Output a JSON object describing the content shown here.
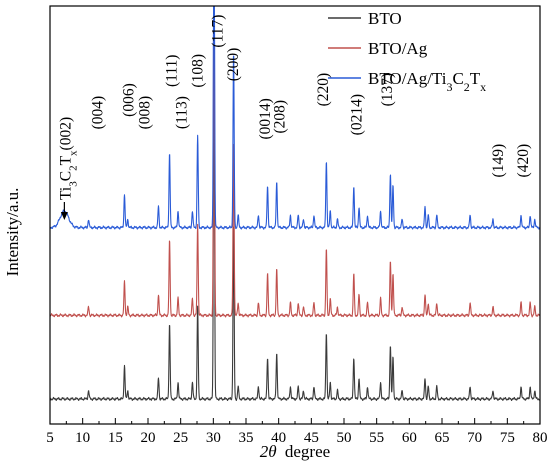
{
  "chart_data": {
    "type": "line",
    "title": "",
    "xlabel_symbol": "2θ",
    "xlabel_unit": "degree",
    "ylabel": "Intensity/a.u.",
    "xlim": [
      5,
      80
    ],
    "x_ticks": [
      5,
      10,
      15,
      20,
      25,
      30,
      35,
      40,
      45,
      50,
      55,
      60,
      65,
      70,
      75,
      80
    ],
    "y_ticks_shown": false,
    "grid": false,
    "legend_position": "top-right",
    "series": [
      {
        "name": "BTO",
        "color": "#3a3a3a",
        "baseline": 0.94,
        "offset": 0.0
      },
      {
        "name": "BTO/Ag",
        "color": "#c0504d",
        "baseline": 0.74,
        "offset": 0.2
      },
      {
        "name": "BTO/Ag/Ti3C2Tx",
        "name_parts": [
          "BTO/Ag/Ti",
          "3",
          "C",
          "2",
          "T",
          "x"
        ],
        "color": "#2a5bd7",
        "baseline": 0.53,
        "offset": 0.41
      }
    ],
    "peaks": [
      {
        "x": 7.2,
        "h": 0.04,
        "w": 0.9,
        "only": "BTO/Ag/Ti3C2Tx"
      },
      {
        "x": 10.9,
        "h": 0.02
      },
      {
        "x": 16.4,
        "h": 0.08
      },
      {
        "x": 16.9,
        "h": 0.02
      },
      {
        "x": 21.6,
        "h": 0.05
      },
      {
        "x": 23.3,
        "h": 0.18
      },
      {
        "x": 24.6,
        "h": 0.04
      },
      {
        "x": 26.8,
        "h": 0.04
      },
      {
        "x": 27.6,
        "h": 0.22
      },
      {
        "x": 30.1,
        "h": 0.85
      },
      {
        "x": 33.1,
        "h": 0.42
      },
      {
        "x": 33.8,
        "h": 0.03
      },
      {
        "x": 36.9,
        "h": 0.03
      },
      {
        "x": 38.3,
        "h": 0.1
      },
      {
        "x": 39.7,
        "h": 0.11
      },
      {
        "x": 41.8,
        "h": 0.03
      },
      {
        "x": 43.0,
        "h": 0.03
      },
      {
        "x": 43.8,
        "h": 0.02
      },
      {
        "x": 45.4,
        "h": 0.03
      },
      {
        "x": 47.3,
        "h": 0.16
      },
      {
        "x": 47.9,
        "h": 0.04
      },
      {
        "x": 49.0,
        "h": 0.02
      },
      {
        "x": 51.5,
        "h": 0.1
      },
      {
        "x": 52.3,
        "h": 0.05
      },
      {
        "x": 53.6,
        "h": 0.03
      },
      {
        "x": 55.6,
        "h": 0.04
      },
      {
        "x": 57.1,
        "h": 0.13
      },
      {
        "x": 57.5,
        "h": 0.1
      },
      {
        "x": 58.9,
        "h": 0.02
      },
      {
        "x": 62.4,
        "h": 0.05
      },
      {
        "x": 62.9,
        "h": 0.03
      },
      {
        "x": 64.2,
        "h": 0.03
      },
      {
        "x": 69.3,
        "h": 0.03
      },
      {
        "x": 72.8,
        "h": 0.02
      },
      {
        "x": 77.1,
        "h": 0.03
      },
      {
        "x": 78.5,
        "h": 0.03
      },
      {
        "x": 79.2,
        "h": 0.02
      }
    ],
    "annotations": [
      {
        "text": "(004)",
        "x": 12.3,
        "y": 0.255,
        "rotate": true
      },
      {
        "text": "(006)",
        "x": 17.0,
        "y": 0.225,
        "rotate": true
      },
      {
        "text": "(008)",
        "x": 19.5,
        "y": 0.255,
        "rotate": true
      },
      {
        "text": "(111)",
        "x": 23.6,
        "y": 0.155,
        "rotate": true
      },
      {
        "text": "(113)",
        "x": 25.1,
        "y": 0.255,
        "rotate": true
      },
      {
        "text": "(108)",
        "x": 27.6,
        "y": 0.155,
        "rotate": true
      },
      {
        "text": "(117)",
        "x": 30.6,
        "y": 0.06,
        "rotate": true
      },
      {
        "text": "(200)",
        "x": 33.0,
        "y": 0.14,
        "rotate": true
      },
      {
        "text": "(0014)",
        "x": 37.9,
        "y": 0.27,
        "rotate": true
      },
      {
        "text": "(208)",
        "x": 40.1,
        "y": 0.265,
        "rotate": true
      },
      {
        "text": "(220)",
        "x": 46.8,
        "y": 0.2,
        "rotate": true
      },
      {
        "text": "(0214)",
        "x": 51.9,
        "y": 0.26,
        "rotate": true
      },
      {
        "text": "(137)",
        "x": 56.6,
        "y": 0.2,
        "rotate": true
      },
      {
        "text": "(149)",
        "x": 73.6,
        "y": 0.37,
        "rotate": true
      },
      {
        "text": "(420)",
        "x": 77.4,
        "y": 0.37,
        "rotate": true
      }
    ],
    "ti3c2_label": {
      "parts": [
        "Ti",
        "3",
        "C",
        "2",
        "T",
        "x",
        "(002)"
      ],
      "peak_x": 7.2
    }
  }
}
